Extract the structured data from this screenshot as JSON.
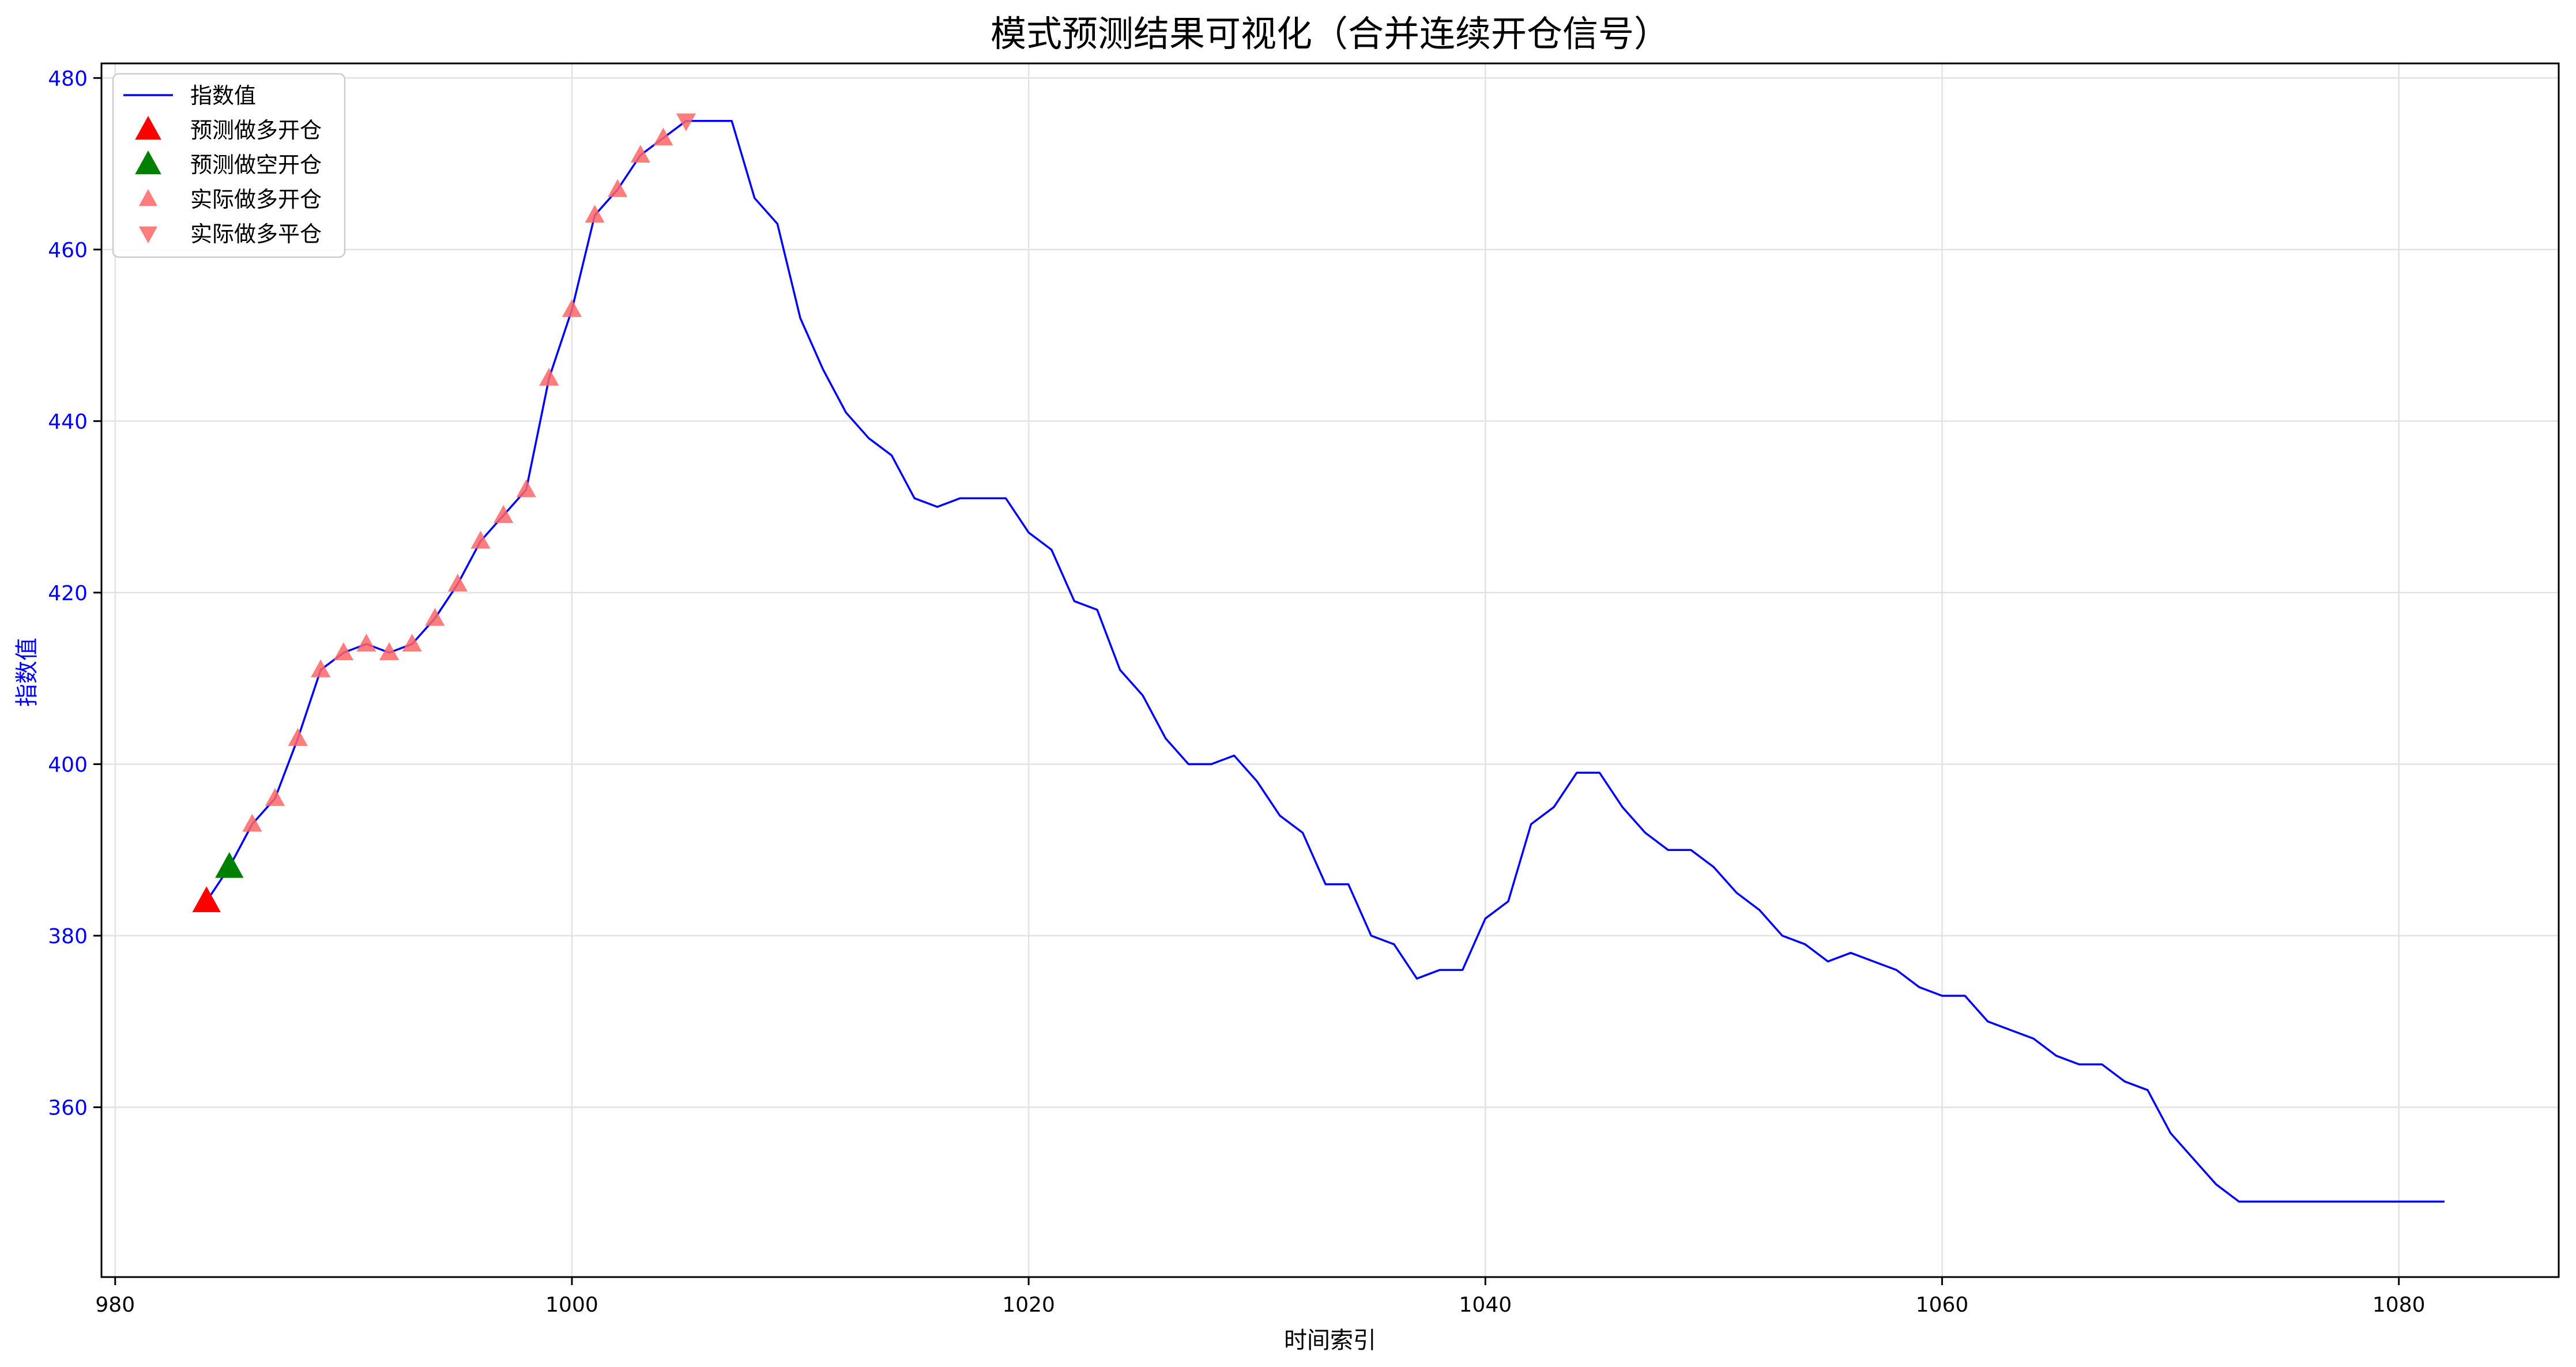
{
  "chart_data": {
    "type": "line",
    "title": "模式预测结果可视化（合并连续开仓信号）",
    "xlabel": "时间索引",
    "ylabel": "指数值",
    "xlim": [
      979.4,
      1087
    ],
    "ylim": [
      340.2,
      481.7
    ],
    "x_ticks": [
      980,
      1000,
      1020,
      1040,
      1060,
      1080
    ],
    "y_ticks": [
      360,
      380,
      400,
      420,
      440,
      460,
      480
    ],
    "grid": true,
    "legend_position": "upper-left",
    "colors": {
      "line": "#0000ff",
      "predicted_long_open": "#ff0000",
      "predicted_short_open": "#008000",
      "actual_long_open": "#ff6666",
      "actual_long_close": "#ff6666",
      "y_axis_label": "#0000ff"
    },
    "series": [
      {
        "name": "指数值",
        "type": "line",
        "x": [
          984,
          985,
          986,
          987,
          988,
          989,
          990,
          991,
          992,
          993,
          994,
          995,
          996,
          997,
          998,
          999,
          1000,
          1001,
          1002,
          1003,
          1004,
          1005,
          1006,
          1007,
          1008,
          1009,
          1010,
          1011,
          1012,
          1013,
          1014,
          1015,
          1016,
          1017,
          1018,
          1019,
          1020,
          1021,
          1022,
          1023,
          1024,
          1025,
          1026,
          1027,
          1028,
          1029,
          1030,
          1031,
          1032,
          1033,
          1034,
          1035,
          1036,
          1037,
          1038,
          1039,
          1040,
          1041,
          1042,
          1043,
          1044,
          1045,
          1046,
          1047,
          1048,
          1049,
          1050,
          1051,
          1052,
          1053,
          1054,
          1055,
          1056,
          1057,
          1058,
          1059,
          1060,
          1061,
          1062,
          1063,
          1064,
          1065,
          1066,
          1067,
          1068,
          1069,
          1070,
          1071,
          1072,
          1073,
          1074,
          1075,
          1076,
          1077,
          1078,
          1079,
          1080,
          1081,
          1082
        ],
        "y": [
          384,
          388,
          393,
          396,
          403,
          411,
          413,
          414,
          413,
          414,
          417,
          421,
          426,
          429,
          432,
          445,
          453,
          464,
          467,
          471,
          473,
          475,
          475,
          475,
          466,
          463,
          452,
          446,
          441,
          438,
          436,
          431,
          430,
          431,
          431,
          431,
          427,
          425,
          419,
          418,
          411,
          408,
          403,
          400,
          400,
          401,
          398,
          394,
          392,
          386,
          386,
          380,
          379,
          375,
          376,
          376,
          382,
          384,
          393,
          395,
          399,
          399,
          395,
          392,
          390,
          390,
          388,
          385,
          383,
          380,
          379,
          377,
          378,
          377,
          376,
          374,
          373,
          373,
          370,
          369,
          368,
          366,
          365,
          365,
          363,
          362,
          357,
          354,
          351,
          349,
          349,
          349,
          349,
          349,
          349,
          349,
          349,
          349,
          349
        ]
      },
      {
        "name": "预测做多开仓",
        "type": "scatter",
        "marker": "triangle-up",
        "points": [
          [
            984,
            384
          ]
        ]
      },
      {
        "name": "预测做空开仓",
        "type": "scatter",
        "marker": "triangle-up",
        "points": [
          [
            985,
            388
          ]
        ]
      },
      {
        "name": "实际做多开仓",
        "type": "scatter",
        "marker": "triangle-up",
        "points": [
          [
            986,
            393
          ],
          [
            987,
            396
          ],
          [
            988,
            403
          ],
          [
            989,
            411
          ],
          [
            990,
            413
          ],
          [
            991,
            414
          ],
          [
            992,
            413
          ],
          [
            993,
            414
          ],
          [
            994,
            417
          ],
          [
            995,
            421
          ],
          [
            996,
            426
          ],
          [
            997,
            429
          ],
          [
            998,
            432
          ],
          [
            999,
            445
          ],
          [
            1000,
            453
          ],
          [
            1001,
            464
          ],
          [
            1002,
            467
          ],
          [
            1003,
            471
          ],
          [
            1004,
            473
          ]
        ]
      },
      {
        "name": "实际做多平仓",
        "type": "scatter",
        "marker": "triangle-down",
        "points": [
          [
            1005,
            475
          ]
        ]
      }
    ]
  }
}
